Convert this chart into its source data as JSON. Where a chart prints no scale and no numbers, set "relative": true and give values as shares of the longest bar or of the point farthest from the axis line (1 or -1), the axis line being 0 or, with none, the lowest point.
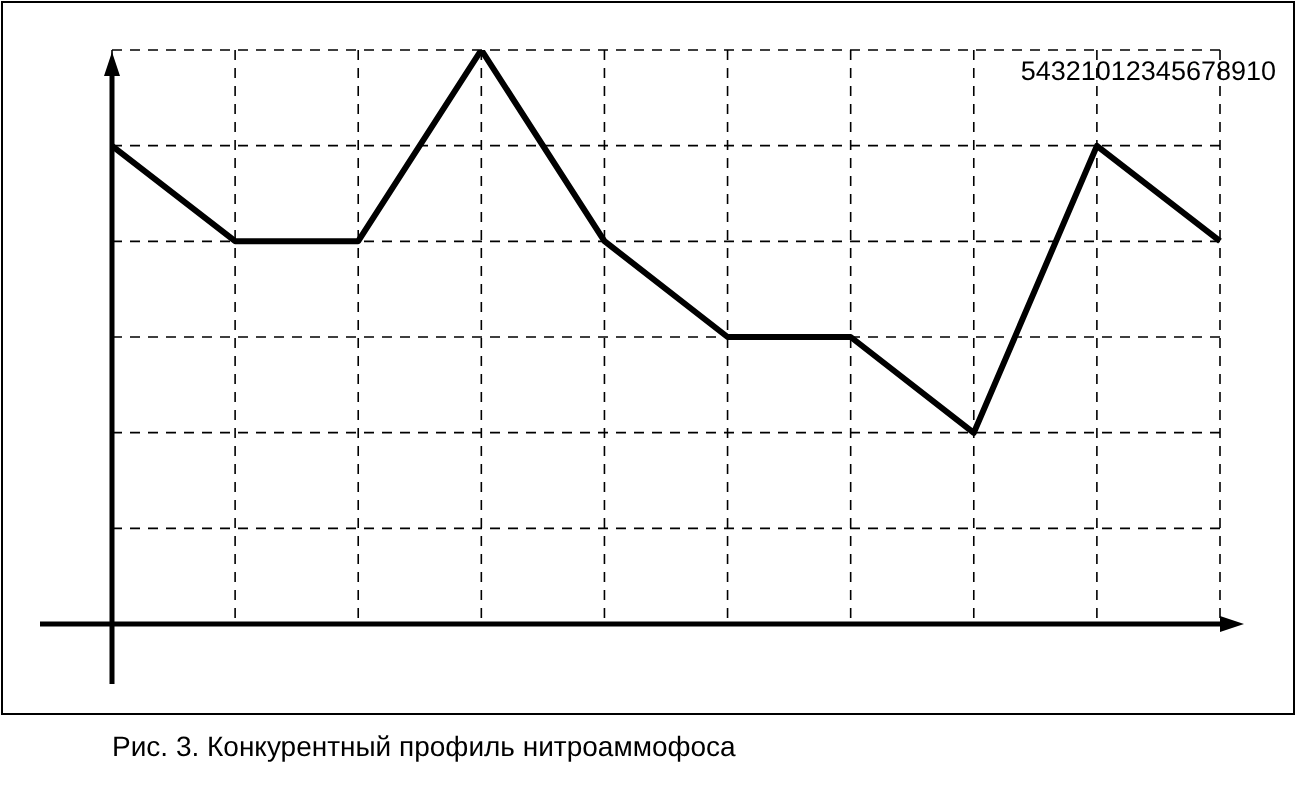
{
  "chart_data": {
    "type": "line",
    "relative": true,
    "categories": [
      null,
      null,
      null,
      null,
      null,
      null,
      null,
      null,
      null,
      null
    ],
    "values": [
      0.833,
      0.667,
      0.667,
      1,
      0.667,
      0.5,
      0.5,
      0.333,
      0.833,
      0.667
    ],
    "color": "#000000",
    "grid": true,
    "marker": "none",
    "line_style": "solid",
    "annotations": [
      "54321012345678910",
      "Рис. 3. Конкурентный профиль нитроаммофоса"
    ]
  }
}
